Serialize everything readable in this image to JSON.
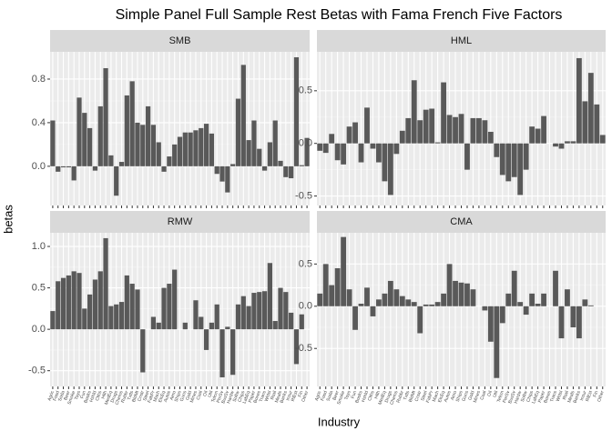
{
  "chart_data": {
    "type": "bar",
    "title": "Simple Panel Full Sample Rest Betas with Fama French Five Factors",
    "xlabel": "Industry",
    "ylabel": "betas",
    "color": "#595959",
    "grid": true,
    "categories": [
      "Agric",
      "Food",
      "Soda",
      "Beer",
      "Smoke",
      "Toys",
      "Fun",
      "Books",
      "Hshld",
      "Clths",
      "Hlth",
      "MedEq",
      "Drugs",
      "Chems",
      "Rubbr",
      "Txtls",
      "BldMt",
      "Cnstr",
      "Steel",
      "FabPr",
      "Mach",
      "ElcEq",
      "Autos",
      "Aero",
      "Ships",
      "Guns",
      "Gold",
      "Mines",
      "Coal",
      "Oil",
      "Util",
      "Telcm",
      "PerSv",
      "BusSv",
      "Hardw",
      "Softw",
      "Chips",
      "LabEq",
      "Paper",
      "Boxes",
      "Trans",
      "Whlsl",
      "Rtail",
      "Meals",
      "Banks",
      "Insur",
      "RlEst",
      "Fin",
      "Other"
    ],
    "series": [
      {
        "name": "SMB",
        "ylim": [
          -0.36,
          1.05
        ],
        "yticks": [
          {
            "value": 0,
            "label": "0.0"
          },
          {
            "value": 0.4,
            "label": "0.4"
          },
          {
            "value": 0.8,
            "label": "0.8"
          }
        ],
        "values": [
          0.42,
          -0.05,
          -0.01,
          -0.01,
          -0.13,
          0.63,
          0.49,
          0.35,
          -0.04,
          0.55,
          0.9,
          0.1,
          -0.27,
          0.04,
          0.65,
          0.78,
          0.4,
          0.38,
          0.55,
          0.38,
          0.22,
          -0.05,
          0.09,
          0.2,
          0.27,
          0.31,
          0.31,
          0.33,
          0.35,
          0.39,
          0.3,
          -0.07,
          -0.14,
          -0.24,
          0.02,
          0.62,
          0.93,
          0.24,
          0.42,
          0.16,
          -0.04,
          0.22,
          0.42,
          0.05,
          -0.1,
          -0.11,
          1.0,
          0.01,
          0.26
        ]
      },
      {
        "name": "HML",
        "ylim": [
          -0.59,
          0.87
        ],
        "yticks": [
          -0.5,
          {
            "value": 0,
            "label": "0.0"
          },
          0.5
        ],
        "values": [
          -0.07,
          -0.09,
          0.09,
          -0.16,
          -0.2,
          0.16,
          0.2,
          -0.18,
          0.34,
          -0.05,
          -0.18,
          -0.36,
          -0.49,
          -0.1,
          0.12,
          0.24,
          0.6,
          0.22,
          0.32,
          0.33,
          0.01,
          0.58,
          0.27,
          0.25,
          0.28,
          -0.25,
          0.24,
          0.24,
          0.22,
          0.11,
          -0.13,
          -0.3,
          -0.36,
          -0.32,
          -0.49,
          -0.25,
          0.16,
          0.14,
          0.26,
          0.0,
          -0.03,
          -0.05,
          0.02,
          0.02,
          0.81,
          0.4,
          0.67,
          0.37,
          0.08
        ]
      },
      {
        "name": "RMW",
        "ylim": [
          -0.69,
          1.165
        ],
        "yticks": [
          -0.5,
          {
            "value": 0,
            "label": "0.0"
          },
          0.5,
          {
            "value": 1,
            "label": "1.0"
          }
        ],
        "values": [
          0.22,
          0.58,
          0.62,
          0.65,
          0.7,
          0.68,
          0.25,
          0.42,
          0.6,
          0.7,
          1.1,
          0.28,
          0.3,
          0.33,
          0.65,
          0.55,
          0.48,
          -0.52,
          0.0,
          0.15,
          0.08,
          0.5,
          0.55,
          0.72,
          0.0,
          0.08,
          0.0,
          0.35,
          0.15,
          -0.25,
          0.08,
          0.3,
          -0.58,
          0.03,
          -0.55,
          0.3,
          0.4,
          0.28,
          0.44,
          0.45,
          0.46,
          0.8,
          0.1,
          0.5,
          0.45,
          0.2,
          -0.42,
          0.18,
          0.0
        ]
      },
      {
        "name": "CMA",
        "ylim": [
          -0.95,
          0.87
        ],
        "yticks": [
          -0.5,
          {
            "value": 0,
            "label": "0.0"
          },
          0.5
        ],
        "values": [
          0.15,
          0.5,
          0.25,
          0.45,
          0.82,
          0.2,
          -0.28,
          0.03,
          0.22,
          -0.12,
          0.08,
          0.15,
          0.3,
          0.2,
          0.12,
          0.08,
          0.05,
          -0.32,
          0.02,
          0.02,
          0.05,
          0.15,
          0.5,
          0.3,
          0.28,
          0.27,
          0.2,
          0.0,
          -0.05,
          -0.42,
          -0.85,
          -0.2,
          0.15,
          0.42,
          0.05,
          -0.1,
          0.15,
          0.03,
          0.15,
          0.0,
          0.42,
          -0.38,
          0.2,
          -0.25,
          -0.38,
          0.08,
          0.01,
          0.0,
          0.0
        ]
      }
    ]
  }
}
